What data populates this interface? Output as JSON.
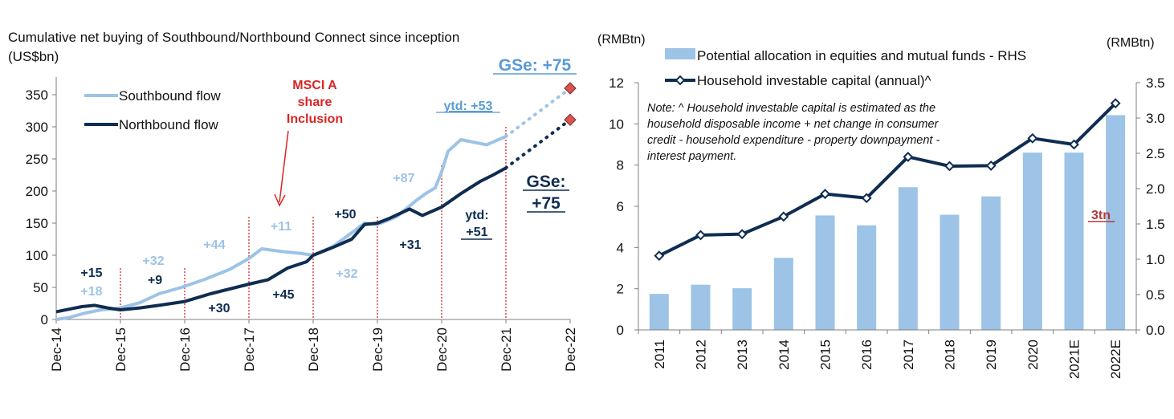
{
  "chart_data": [
    {
      "type": "line",
      "title": "Cumulative net buying of Southbound/Northbound Connect since inception",
      "unit_label": "(US$bn)",
      "x_ticks": [
        "Dec-14",
        "Dec-15",
        "Dec-16",
        "Dec-17",
        "Dec-18",
        "Dec-19",
        "Dec-20",
        "Dec-21",
        "Dec-22"
      ],
      "y_ticks": [
        "0",
        "50",
        "100",
        "150",
        "200",
        "250",
        "300",
        "350"
      ],
      "ylim": [
        0,
        375
      ],
      "legend": [
        "Southbound flow",
        "Northbound flow"
      ],
      "legend_position": "top-left",
      "grid": false,
      "colors": {
        "southbound": "#9DC3E6",
        "northbound": "#0F2D50",
        "annot_red": "#D92525",
        "forecast_marker": "#D9534F"
      },
      "series": [
        {
          "name": "Southbound flow",
          "x": [
            0,
            0.2,
            0.45,
            0.7,
            0.95,
            1.0,
            1.3,
            1.6,
            1.95,
            2.3,
            2.7,
            3.0,
            3.2,
            3.5,
            3.8,
            4.0,
            4.3,
            4.6,
            4.8,
            5.0,
            5.3,
            5.6,
            5.75,
            5.9,
            6.0,
            6.1,
            6.3,
            6.5,
            6.7,
            7.0
          ],
          "values": [
            0,
            3,
            10,
            15,
            17,
            18,
            26,
            40,
            50,
            62,
            78,
            95,
            110,
            106,
            103,
            100,
            113,
            135,
            150,
            148,
            160,
            185,
            196,
            205,
            230,
            262,
            280,
            276,
            272,
            285
          ]
        },
        {
          "name": "Northbound flow",
          "x": [
            0,
            0.2,
            0.4,
            0.6,
            0.8,
            1.0,
            1.3,
            1.6,
            2.0,
            2.4,
            2.8,
            3.0,
            3.3,
            3.6,
            3.9,
            4.0,
            4.3,
            4.6,
            4.8,
            5.0,
            5.2,
            5.5,
            5.7,
            6.0,
            6.3,
            6.6,
            6.8,
            7.0
          ],
          "values": [
            12,
            16,
            20,
            22,
            18,
            15,
            18,
            22,
            28,
            40,
            50,
            55,
            62,
            80,
            90,
            100,
            112,
            125,
            148,
            150,
            158,
            172,
            162,
            175,
            196,
            215,
            225,
            236
          ]
        }
      ],
      "forecast": {
        "southbound": {
          "from": [
            7.0,
            285
          ],
          "to": [
            8.0,
            360
          ]
        },
        "northbound": {
          "from": [
            7.0,
            236
          ],
          "to": [
            8.0,
            311
          ]
        }
      },
      "annotations": {
        "southbound_yearly": [
          "+18",
          "+32",
          "+44",
          "+11",
          "+32",
          "+87"
        ],
        "northbound_yearly": [
          "+15",
          "+9",
          "+30",
          "+45",
          "+50",
          "+31"
        ],
        "msci": [
          "MSCI A",
          "share",
          "Inclusion"
        ],
        "ytd_south": "ytd: +53",
        "ytd_north": [
          "ytd:",
          "+51"
        ],
        "gse_south": "GSe: +75",
        "gse_north": [
          "GSe:",
          "+75"
        ]
      }
    },
    {
      "type": "bar+line",
      "left_unit": "(RMBtn)",
      "right_unit": "(RMBtn)",
      "categories": [
        "2011",
        "2012",
        "2013",
        "2014",
        "2015",
        "2016",
        "2017",
        "2018",
        "2019",
        "2020",
        "2021E",
        "2022E"
      ],
      "left_ticks": [
        "0",
        "2",
        "4",
        "6",
        "8",
        "10",
        "12"
      ],
      "left_lim": [
        0,
        12
      ],
      "right_ticks": [
        "0.0",
        "0.5",
        "1.0",
        "1.5",
        "2.0",
        "2.5",
        "3.0",
        "3.5"
      ],
      "right_lim": [
        0,
        3.5
      ],
      "legend": [
        "Potential allocation in equities and mutual funds - RHS",
        "Household investable capital (annual)^"
      ],
      "grid": false,
      "colors": {
        "bars": "#9DC3E6",
        "line": "#0F2D50",
        "annot": "#B03A3A"
      },
      "series": [
        {
          "name": "Potential allocation in equities and mutual funds - RHS",
          "axis": "right",
          "values": [
            0.51,
            0.64,
            0.59,
            1.02,
            1.62,
            1.48,
            2.02,
            1.63,
            1.89,
            2.51,
            2.51,
            3.04
          ]
        },
        {
          "name": "Household investable capital (annual)^",
          "axis": "left",
          "values": [
            3.6,
            4.6,
            4.65,
            5.5,
            6.6,
            6.4,
            8.4,
            7.95,
            7.97,
            9.3,
            9.0,
            11.0
          ]
        }
      ],
      "note": [
        "Note: ^ Household investable capital is estimated as the",
        "household disposable income + net change in consumer",
        "credit - household expenditure - property downpayment -",
        "interest payment."
      ],
      "callout": "3tn"
    }
  ]
}
